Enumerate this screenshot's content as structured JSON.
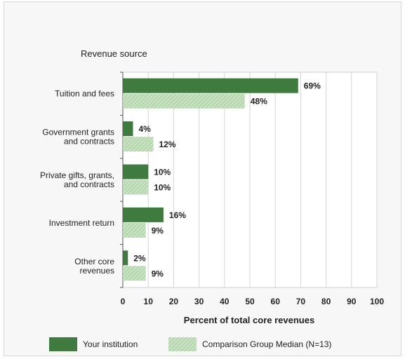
{
  "chart_data": {
    "type": "bar",
    "orientation": "horizontal",
    "title": "Revenue source",
    "xlabel": "Percent of total core revenues",
    "xlim": [
      0,
      100
    ],
    "xticks": [
      0,
      10,
      20,
      30,
      40,
      50,
      60,
      70,
      80,
      90,
      100
    ],
    "grid": true,
    "legend_position": "bottom",
    "categories": [
      [
        "Tuition and fees"
      ],
      [
        "Government grants",
        "and contracts"
      ],
      [
        "Private gifts, grants,",
        "and contracts"
      ],
      [
        "Investment return"
      ],
      [
        "Other core",
        "revenues"
      ]
    ],
    "series": [
      {
        "name": "Your institution",
        "values": [
          69,
          4,
          10,
          16,
          2
        ],
        "labels": [
          "69%",
          "4%",
          "10%",
          "16%",
          "2%"
        ],
        "color": "#3f7a3f",
        "pattern": "solid"
      },
      {
        "name": "Comparison Group Median (N=13)",
        "values": [
          48,
          12,
          10,
          9,
          9
        ],
        "labels": [
          "48%",
          "12%",
          "10%",
          "9%",
          "9%"
        ],
        "color": "#b7d9b0",
        "pattern": "hatched"
      }
    ]
  }
}
